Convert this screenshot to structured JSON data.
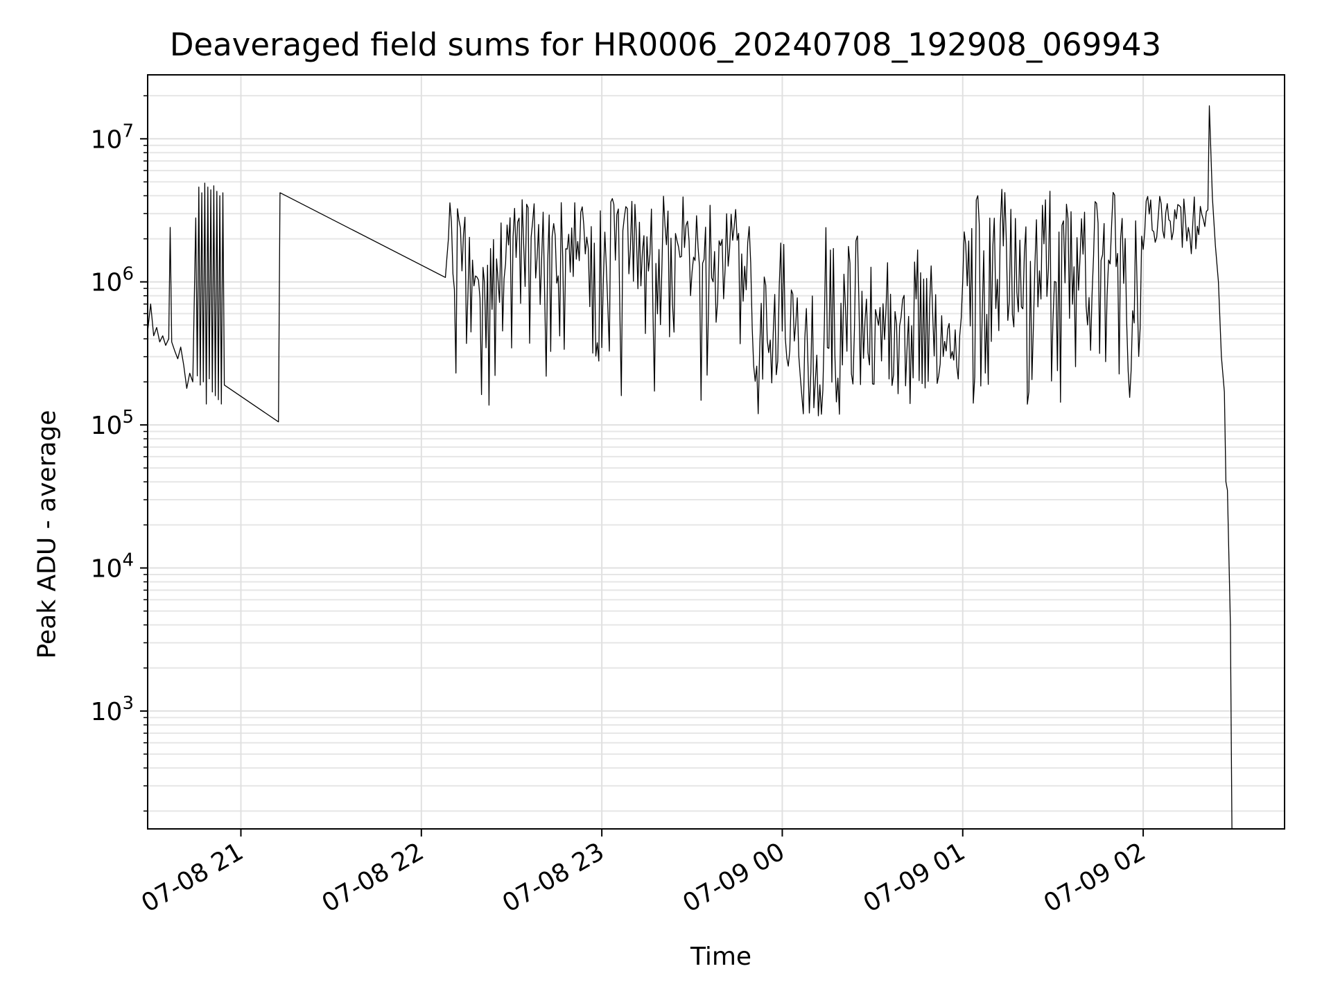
{
  "chart_data": {
    "type": "line",
    "title": "Deaveraged field sums for HR0006_20240708_192908_069943",
    "xlabel": "Time",
    "ylabel": "Peak ADU - average",
    "x_range": [
      "2024-07-08T20:29:00",
      "2024-07-09T02:47:00"
    ],
    "y_range": [
      150,
      28000000
    ],
    "y_scale": "log",
    "grid": true,
    "grid_minor": true,
    "line_color": "#000000",
    "x_ticks": [
      {
        "t": "2024-07-08T21:00:00",
        "label": "07-08 21"
      },
      {
        "t": "2024-07-08T22:00:00",
        "label": "07-08 22"
      },
      {
        "t": "2024-07-08T23:00:00",
        "label": "07-08 23"
      },
      {
        "t": "2024-07-09T00:00:00",
        "label": "07-09 00"
      },
      {
        "t": "2024-07-09T01:00:00",
        "label": "07-09 01"
      },
      {
        "t": "2024-07-09T02:00:00",
        "label": "07-09 02"
      }
    ],
    "y_ticks": [
      {
        "value": 1000,
        "base": "10",
        "exp": "3"
      },
      {
        "value": 10000,
        "base": "10",
        "exp": "4"
      },
      {
        "value": 100000,
        "base": "10",
        "exp": "5"
      },
      {
        "value": 1000000,
        "base": "10",
        "exp": "6"
      },
      {
        "value": 10000000,
        "base": "10",
        "exp": "7"
      }
    ],
    "series": [
      {
        "values_note": "approximate trace read from the plot (time, Peak ADU - average)",
        "points": [
          [
            "2024-07-08T20:29:00",
            450000
          ],
          [
            "2024-07-08T20:30:00",
            700000
          ],
          [
            "2024-07-08T20:31:00",
            420000
          ],
          [
            "2024-07-08T20:32:00",
            480000
          ],
          [
            "2024-07-08T20:33:00",
            380000
          ],
          [
            "2024-07-08T20:34:00",
            420000
          ],
          [
            "2024-07-08T20:35:00",
            360000
          ],
          [
            "2024-07-08T20:36:00",
            400000
          ],
          [
            "2024-07-08T20:36:30",
            2400000
          ],
          [
            "2024-07-08T20:37:00",
            380000
          ],
          [
            "2024-07-08T20:38:00",
            330000
          ],
          [
            "2024-07-08T20:39:00",
            290000
          ],
          [
            "2024-07-08T20:40:00",
            350000
          ],
          [
            "2024-07-08T20:41:00",
            260000
          ],
          [
            "2024-07-08T20:42:00",
            180000
          ],
          [
            "2024-07-08T20:43:00",
            230000
          ],
          [
            "2024-07-08T20:44:00",
            200000
          ],
          [
            "2024-07-08T20:45:00",
            2800000
          ],
          [
            "2024-07-08T20:45:30",
            220000
          ],
          [
            "2024-07-08T20:46:00",
            4600000
          ],
          [
            "2024-07-08T20:46:30",
            190000
          ],
          [
            "2024-07-08T20:47:00",
            4200000
          ],
          [
            "2024-07-08T20:47:30",
            200000
          ],
          [
            "2024-07-08T20:48:00",
            4900000
          ],
          [
            "2024-07-08T20:48:30",
            140000
          ],
          [
            "2024-07-08T20:49:00",
            4600000
          ],
          [
            "2024-07-08T20:49:30",
            210000
          ],
          [
            "2024-07-08T20:50:00",
            4400000
          ],
          [
            "2024-07-08T20:50:30",
            170000
          ],
          [
            "2024-07-08T20:51:00",
            4700000
          ],
          [
            "2024-07-08T20:51:30",
            160000
          ],
          [
            "2024-07-08T20:52:00",
            4300000
          ],
          [
            "2024-07-08T20:52:30",
            150000
          ],
          [
            "2024-07-08T20:53:00",
            4000000
          ],
          [
            "2024-07-08T20:53:30",
            140000
          ],
          [
            "2024-07-08T20:54:00",
            4200000
          ],
          [
            "2024-07-08T20:54:30",
            190000
          ],
          [
            "2024-07-08T21:12:30",
            105000
          ],
          [
            "2024-07-08T21:13:00",
            4200000
          ]
        ],
        "dense_segments": [
          {
            "from": "2024-07-08T22:08:00",
            "to": "2024-07-08T23:50:00",
            "envelope_high": 4000000,
            "envelope_low": 130000,
            "typical": 1500000
          },
          {
            "from": "2024-07-08T23:50:00",
            "to": "2024-07-09T01:00:00",
            "envelope_high": 2500000,
            "envelope_low": 115000,
            "typical": 400000
          },
          {
            "from": "2024-07-09T01:00:00",
            "to": "2024-07-09T02:00:00",
            "envelope_high": 5000000,
            "envelope_low": 130000,
            "typical": 1200000
          },
          {
            "from": "2024-07-09T02:00:00",
            "to": "2024-07-09T02:22:00",
            "envelope_high": 4000000,
            "envelope_low": 1500000,
            "typical": 2800000
          }
        ],
        "tail_points": [
          [
            "2024-07-09T02:22:00",
            17000000
          ],
          [
            "2024-07-09T02:23:00",
            3900000
          ],
          [
            "2024-07-09T02:24:00",
            1800000
          ],
          [
            "2024-07-09T02:25:00",
            1000000
          ],
          [
            "2024-07-09T02:26:00",
            300000
          ],
          [
            "2024-07-09T02:27:00",
            170000
          ],
          [
            "2024-07-09T02:27:30",
            40000
          ],
          [
            "2024-07-09T02:28:00",
            35000
          ],
          [
            "2024-07-09T02:29:00",
            4000
          ],
          [
            "2024-07-09T02:29:30",
            150
          ]
        ]
      }
    ]
  }
}
